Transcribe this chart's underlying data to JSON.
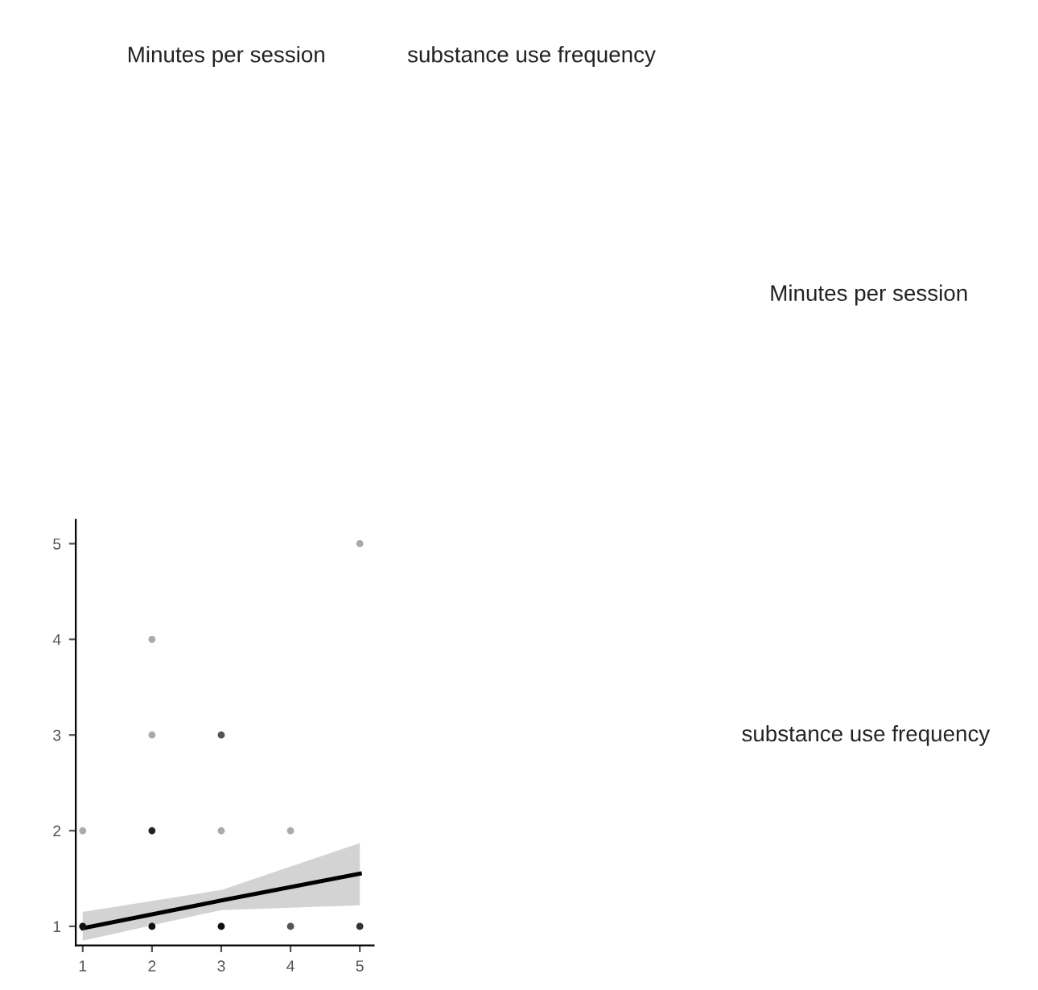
{
  "chart_data": {
    "type": "scatter",
    "annotations": [
      "Minutes per session",
      "substance use frequency",
      "Minutes per session",
      "substance use frequency"
    ],
    "series": [
      {
        "x": [
          1,
          1,
          2,
          2,
          2,
          2,
          3,
          3,
          3,
          4,
          4,
          5,
          5
        ],
        "values": [
          1,
          2,
          1,
          2,
          3,
          4,
          1,
          2,
          3,
          1,
          2,
          1,
          5
        ],
        "colors": [
          "#111111",
          "#aaaaaa",
          "#111111",
          "#222222",
          "#aaaaaa",
          "#aaaaaa",
          "#111111",
          "#aaaaaa",
          "#555555",
          "#555555",
          "#aaaaaa",
          "#333333",
          "#aaaaaa"
        ]
      },
      {
        "type": "line",
        "color": "#000000",
        "x": [
          1,
          3,
          5
        ],
        "values": [
          0.98,
          1.27,
          1.55
        ],
        "lower": [
          0.85,
          1.17,
          1.22
        ],
        "upper": [
          1.15,
          1.38,
          1.87
        ]
      }
    ],
    "xlim": [
      0.9,
      5.2
    ],
    "ylim": [
      0.8,
      5.25
    ],
    "xticks": [
      1,
      2,
      3,
      4,
      5
    ],
    "yticks": [
      1,
      2,
      3,
      4,
      5
    ],
    "grid": false,
    "legend": false
  }
}
